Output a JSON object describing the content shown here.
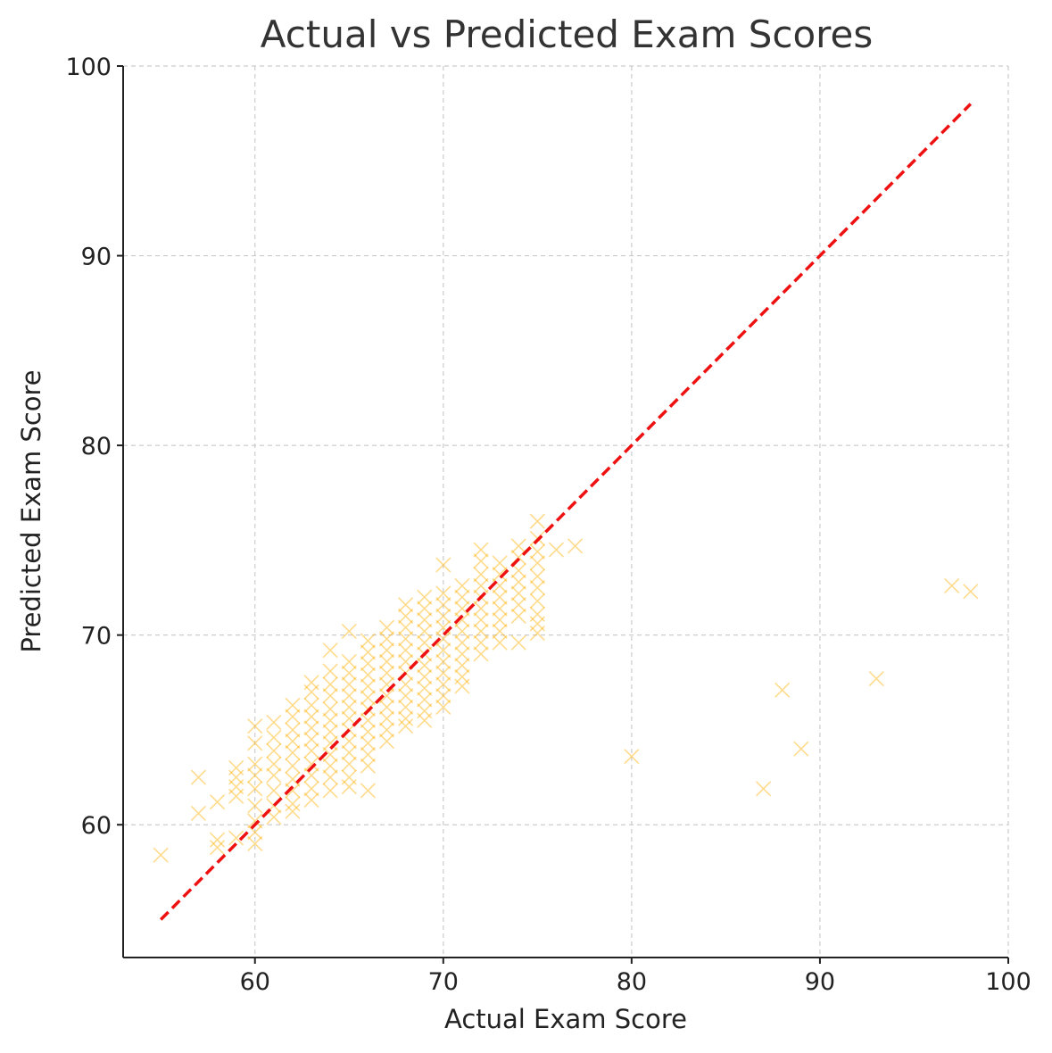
{
  "colors": {
    "points": "#FFB000",
    "reference_line": "#ee1111"
  },
  "chart_data": {
    "type": "scatter",
    "title": "Actual vs Predicted Exam Scores",
    "xlabel": "Actual Exam Score",
    "ylabel": "Predicted Exam Score",
    "xlim": [
      53,
      100
    ],
    "ylim": [
      53,
      100
    ],
    "xticks": [
      60,
      70,
      80,
      90,
      100
    ],
    "yticks": [
      60,
      70,
      80,
      90,
      100
    ],
    "grid": true,
    "marker": "x",
    "reference_line": {
      "style": "dashed",
      "x": [
        55,
        98
      ],
      "y": [
        55,
        98
      ]
    },
    "series": [
      {
        "values": [
          {
            "x": 55,
            "y": 58.4
          },
          {
            "x": 57,
            "y": 62.5
          },
          {
            "x": 57,
            "y": 60.6
          },
          {
            "x": 58,
            "y": 61.2
          },
          {
            "x": 58,
            "y": 59.2
          },
          {
            "x": 58,
            "y": 58.8
          },
          {
            "x": 59,
            "y": 63.0
          },
          {
            "x": 59,
            "y": 62.5
          },
          {
            "x": 59,
            "y": 62.0
          },
          {
            "x": 59,
            "y": 61.5
          },
          {
            "x": 59,
            "y": 59.3
          },
          {
            "x": 60,
            "y": 65.2
          },
          {
            "x": 60,
            "y": 64.3
          },
          {
            "x": 60,
            "y": 63.2
          },
          {
            "x": 60,
            "y": 62.6
          },
          {
            "x": 60,
            "y": 61.9
          },
          {
            "x": 60,
            "y": 61.0
          },
          {
            "x": 60,
            "y": 60.2
          },
          {
            "x": 60,
            "y": 59.6
          },
          {
            "x": 60,
            "y": 59.0
          },
          {
            "x": 61,
            "y": 65.4
          },
          {
            "x": 61,
            "y": 64.6
          },
          {
            "x": 61,
            "y": 63.9
          },
          {
            "x": 61,
            "y": 63.2
          },
          {
            "x": 61,
            "y": 62.6
          },
          {
            "x": 61,
            "y": 61.8
          },
          {
            "x": 61,
            "y": 61.0
          },
          {
            "x": 61,
            "y": 60.4
          },
          {
            "x": 62,
            "y": 66.3
          },
          {
            "x": 62,
            "y": 65.7
          },
          {
            "x": 62,
            "y": 65.0
          },
          {
            "x": 62,
            "y": 64.4
          },
          {
            "x": 62,
            "y": 63.8
          },
          {
            "x": 62,
            "y": 63.1
          },
          {
            "x": 62,
            "y": 62.4
          },
          {
            "x": 62,
            "y": 61.8
          },
          {
            "x": 62,
            "y": 61.1
          },
          {
            "x": 62,
            "y": 60.7
          },
          {
            "x": 63,
            "y": 67.5
          },
          {
            "x": 63,
            "y": 67.0
          },
          {
            "x": 63,
            "y": 66.3
          },
          {
            "x": 63,
            "y": 65.7
          },
          {
            "x": 63,
            "y": 65.1
          },
          {
            "x": 63,
            "y": 64.5
          },
          {
            "x": 63,
            "y": 63.9
          },
          {
            "x": 63,
            "y": 63.2
          },
          {
            "x": 63,
            "y": 62.6
          },
          {
            "x": 63,
            "y": 61.9
          },
          {
            "x": 63,
            "y": 61.3
          },
          {
            "x": 64,
            "y": 69.2
          },
          {
            "x": 64,
            "y": 68.1
          },
          {
            "x": 64,
            "y": 67.4
          },
          {
            "x": 64,
            "y": 66.8
          },
          {
            "x": 64,
            "y": 66.1
          },
          {
            "x": 64,
            "y": 65.5
          },
          {
            "x": 64,
            "y": 64.9
          },
          {
            "x": 64,
            "y": 64.3
          },
          {
            "x": 64,
            "y": 63.7
          },
          {
            "x": 64,
            "y": 63.1
          },
          {
            "x": 64,
            "y": 62.5
          },
          {
            "x": 64,
            "y": 61.8
          },
          {
            "x": 65,
            "y": 70.2
          },
          {
            "x": 65,
            "y": 68.6
          },
          {
            "x": 65,
            "y": 68.0
          },
          {
            "x": 65,
            "y": 67.4
          },
          {
            "x": 65,
            "y": 66.8
          },
          {
            "x": 65,
            "y": 66.2
          },
          {
            "x": 65,
            "y": 65.6
          },
          {
            "x": 65,
            "y": 65.0
          },
          {
            "x": 65,
            "y": 64.4
          },
          {
            "x": 65,
            "y": 63.8
          },
          {
            "x": 65,
            "y": 63.2
          },
          {
            "x": 65,
            "y": 62.5
          },
          {
            "x": 65,
            "y": 62.0
          },
          {
            "x": 66,
            "y": 69.7
          },
          {
            "x": 66,
            "y": 69.1
          },
          {
            "x": 66,
            "y": 68.5
          },
          {
            "x": 66,
            "y": 67.9
          },
          {
            "x": 66,
            "y": 67.3
          },
          {
            "x": 66,
            "y": 66.7
          },
          {
            "x": 66,
            "y": 66.1
          },
          {
            "x": 66,
            "y": 65.5
          },
          {
            "x": 66,
            "y": 64.9
          },
          {
            "x": 66,
            "y": 64.3
          },
          {
            "x": 66,
            "y": 63.7
          },
          {
            "x": 66,
            "y": 63.1
          },
          {
            "x": 66,
            "y": 61.8
          },
          {
            "x": 67,
            "y": 70.4
          },
          {
            "x": 67,
            "y": 69.8
          },
          {
            "x": 67,
            "y": 69.2
          },
          {
            "x": 67,
            "y": 68.6
          },
          {
            "x": 67,
            "y": 68.0
          },
          {
            "x": 67,
            "y": 67.4
          },
          {
            "x": 67,
            "y": 66.8
          },
          {
            "x": 67,
            "y": 66.2
          },
          {
            "x": 67,
            "y": 65.6
          },
          {
            "x": 67,
            "y": 65.0
          },
          {
            "x": 67,
            "y": 64.4
          },
          {
            "x": 68,
            "y": 71.6
          },
          {
            "x": 68,
            "y": 71.0
          },
          {
            "x": 68,
            "y": 70.4
          },
          {
            "x": 68,
            "y": 69.8
          },
          {
            "x": 68,
            "y": 69.2
          },
          {
            "x": 68,
            "y": 68.6
          },
          {
            "x": 68,
            "y": 68.0
          },
          {
            "x": 68,
            "y": 67.4
          },
          {
            "x": 68,
            "y": 66.8
          },
          {
            "x": 68,
            "y": 66.2
          },
          {
            "x": 68,
            "y": 65.6
          },
          {
            "x": 68,
            "y": 65.2
          },
          {
            "x": 69,
            "y": 72.0
          },
          {
            "x": 69,
            "y": 71.4
          },
          {
            "x": 69,
            "y": 70.8
          },
          {
            "x": 69,
            "y": 70.2
          },
          {
            "x": 69,
            "y": 69.6
          },
          {
            "x": 69,
            "y": 69.0
          },
          {
            "x": 69,
            "y": 68.4
          },
          {
            "x": 69,
            "y": 67.8
          },
          {
            "x": 69,
            "y": 67.2
          },
          {
            "x": 69,
            "y": 66.6
          },
          {
            "x": 69,
            "y": 66.0
          },
          {
            "x": 69,
            "y": 65.5
          },
          {
            "x": 70,
            "y": 73.7
          },
          {
            "x": 70,
            "y": 72.2
          },
          {
            "x": 70,
            "y": 71.6
          },
          {
            "x": 70,
            "y": 71.0
          },
          {
            "x": 70,
            "y": 70.4
          },
          {
            "x": 70,
            "y": 69.8
          },
          {
            "x": 70,
            "y": 69.2
          },
          {
            "x": 70,
            "y": 68.6
          },
          {
            "x": 70,
            "y": 68.0
          },
          {
            "x": 70,
            "y": 67.4
          },
          {
            "x": 70,
            "y": 66.8
          },
          {
            "x": 70,
            "y": 66.2
          },
          {
            "x": 71,
            "y": 72.6
          },
          {
            "x": 71,
            "y": 72.0
          },
          {
            "x": 71,
            "y": 71.4
          },
          {
            "x": 71,
            "y": 70.8
          },
          {
            "x": 71,
            "y": 70.2
          },
          {
            "x": 71,
            "y": 69.6
          },
          {
            "x": 71,
            "y": 69.0
          },
          {
            "x": 71,
            "y": 68.4
          },
          {
            "x": 71,
            "y": 67.8
          },
          {
            "x": 71,
            "y": 67.3
          },
          {
            "x": 72,
            "y": 74.5
          },
          {
            "x": 72,
            "y": 73.9
          },
          {
            "x": 72,
            "y": 73.2
          },
          {
            "x": 72,
            "y": 72.6
          },
          {
            "x": 72,
            "y": 72.0
          },
          {
            "x": 72,
            "y": 71.4
          },
          {
            "x": 72,
            "y": 70.8
          },
          {
            "x": 72,
            "y": 70.2
          },
          {
            "x": 72,
            "y": 69.6
          },
          {
            "x": 72,
            "y": 69.0
          },
          {
            "x": 73,
            "y": 73.8
          },
          {
            "x": 73,
            "y": 73.2
          },
          {
            "x": 73,
            "y": 72.6
          },
          {
            "x": 73,
            "y": 72.0
          },
          {
            "x": 73,
            "y": 71.4
          },
          {
            "x": 73,
            "y": 70.8
          },
          {
            "x": 73,
            "y": 70.2
          },
          {
            "x": 73,
            "y": 69.6
          },
          {
            "x": 74,
            "y": 74.7
          },
          {
            "x": 74,
            "y": 74.1
          },
          {
            "x": 74,
            "y": 73.4
          },
          {
            "x": 74,
            "y": 72.8
          },
          {
            "x": 74,
            "y": 72.2
          },
          {
            "x": 74,
            "y": 71.6
          },
          {
            "x": 74,
            "y": 71.0
          },
          {
            "x": 74,
            "y": 69.6
          },
          {
            "x": 75,
            "y": 76.0
          },
          {
            "x": 75,
            "y": 75.1
          },
          {
            "x": 75,
            "y": 74.4
          },
          {
            "x": 75,
            "y": 73.8
          },
          {
            "x": 75,
            "y": 73.1
          },
          {
            "x": 75,
            "y": 72.5
          },
          {
            "x": 75,
            "y": 71.8
          },
          {
            "x": 75,
            "y": 71.1
          },
          {
            "x": 75,
            "y": 70.6
          },
          {
            "x": 75,
            "y": 70.1
          },
          {
            "x": 76,
            "y": 74.5
          },
          {
            "x": 77,
            "y": 74.7
          },
          {
            "x": 80,
            "y": 63.6
          },
          {
            "x": 87,
            "y": 61.9
          },
          {
            "x": 88,
            "y": 67.1
          },
          {
            "x": 89,
            "y": 64.0
          },
          {
            "x": 93,
            "y": 67.7
          },
          {
            "x": 97,
            "y": 72.6
          },
          {
            "x": 98,
            "y": 72.3
          }
        ]
      }
    ]
  }
}
